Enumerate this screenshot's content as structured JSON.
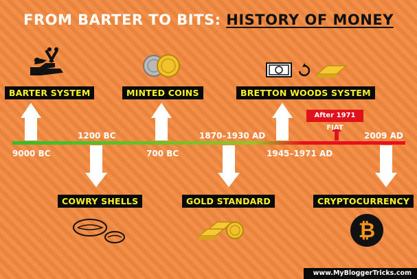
{
  "title": {
    "prefix": "FROM BARTER TO BITS:",
    "accent": "HISTORY OF MONEY"
  },
  "timeline": {
    "left_color": "#2fbf2a",
    "right_color": "#e8101a",
    "events": [
      {
        "label": "BARTER SYSTEM",
        "date": "9000 BC",
        "side": "above",
        "icon": "barter-hands-tools-icon"
      },
      {
        "label": "COWRY SHELLS",
        "date": "1200 BC",
        "side": "below",
        "icon": "cowry-shells-icon"
      },
      {
        "label": "MINTED COINS",
        "date": "700 BC",
        "side": "above",
        "icon": "minted-coins-icon"
      },
      {
        "label": "GOLD STANDARD",
        "date": "1870–1930 AD",
        "side": "below",
        "icon": "gold-bars-coin-icon"
      },
      {
        "label": "BRETTON WOODS SYSTEM",
        "date": "1945–1971 AD",
        "side": "above",
        "icon": "cash-gold-exchange-icon"
      },
      {
        "label": "CRYPTOCURRENCY",
        "date": "2009 AD",
        "side": "below",
        "icon": "bitcoin-icon"
      }
    ],
    "fiat_note": "After 1971 FIAT"
  },
  "footer": "www.MyBloggerTricks.com",
  "colors": {
    "background": "#f2893f",
    "label_bg": "#0a0a0a",
    "label_text": "#f7f12a",
    "fiat_red": "#e0121b"
  }
}
